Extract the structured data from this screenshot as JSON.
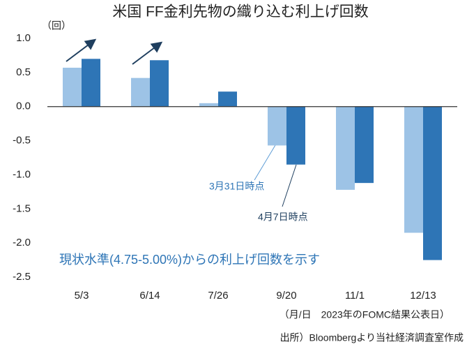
{
  "chart_data": {
    "type": "bar",
    "title": "米国 FF金利先物の織り込む利上げ回数",
    "y_unit": "（回）",
    "x_note": "（月/日　2023年のFOMC結果公表日）",
    "source": "出所）Bloombergより当社経済調査室作成",
    "annotation": "現状水準(4.75-5.00%)からの利上げ回数を示す",
    "categories": [
      "5/3",
      "6/14",
      "7/26",
      "9/20",
      "11/1",
      "12/13"
    ],
    "series": [
      {
        "name": "3月31日時点",
        "color": "#9dc3e6",
        "values": [
          0.57,
          0.42,
          0.05,
          -0.57,
          -1.22,
          -1.85
        ]
      },
      {
        "name": "4月7日時点",
        "color": "#2e75b6",
        "values": [
          0.7,
          0.68,
          0.22,
          -0.85,
          -1.12,
          -2.25
        ]
      }
    ],
    "ylim": [
      -2.5,
      1.0
    ],
    "yticks": [
      {
        "value": 1.0,
        "label": "1.0"
      },
      {
        "value": 0.5,
        "label": "0.5"
      },
      {
        "value": 0,
        "label": "0.0"
      },
      {
        "value": -0.5,
        "label": "-0.5"
      },
      {
        "value": -1.0,
        "label": "-1.0"
      },
      {
        "value": -1.5,
        "label": "-1.5"
      },
      {
        "value": -2.0,
        "label": "-2.0"
      },
      {
        "value": -2.5,
        "label": "-2.5"
      }
    ],
    "grid": false
  }
}
